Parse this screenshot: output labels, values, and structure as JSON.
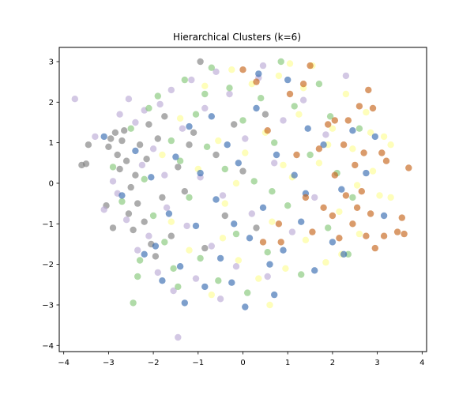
{
  "chart_data": {
    "type": "scatter",
    "title": "Hierarchical Clusters (k=6)",
    "xlabel": "",
    "ylabel": "",
    "xlim": [
      -4.1,
      4.1
    ],
    "ylim": [
      -4.15,
      3.35
    ],
    "xticks": [
      -4,
      -3,
      -2,
      -1,
      0,
      1,
      2,
      3,
      4
    ],
    "yticks": [
      -4,
      -3,
      -2,
      -1,
      0,
      1,
      2,
      3
    ],
    "grid": false,
    "legend": "none",
    "marker_alpha": 0.65,
    "series": [
      {
        "color": "#7f7f7f",
        "points": [
          [
            -3.6,
            0.45
          ],
          [
            -3.5,
            0.48
          ],
          [
            -3.45,
            0.95
          ],
          [
            -3.0,
            0.9
          ],
          [
            -2.95,
            1.1
          ],
          [
            -2.85,
            1.25
          ],
          [
            -2.8,
            0.7
          ],
          [
            -2.75,
            0.35
          ],
          [
            -2.7,
            1.05
          ],
          [
            -2.65,
            1.3
          ],
          [
            -2.6,
            0.55
          ],
          [
            -2.5,
            -0.1
          ],
          [
            -2.55,
            -0.75
          ],
          [
            -2.4,
            0.2
          ],
          [
            -2.35,
            -0.5
          ],
          [
            -2.3,
            0.95
          ],
          [
            -2.2,
            -0.95
          ],
          [
            -2.15,
            0.6
          ],
          [
            -2.1,
            1.45
          ],
          [
            -2.05,
            -1.5
          ],
          [
            -1.95,
            -1.8
          ],
          [
            -1.9,
            1.1
          ],
          [
            -1.75,
            1.65
          ],
          [
            -1.6,
            -1.3
          ],
          [
            -1.45,
            0.4
          ],
          [
            -1.3,
            -0.2
          ],
          [
            -1.1,
            1.25
          ],
          [
            -0.95,
            3.0
          ],
          [
            -0.85,
            -1.6
          ],
          [
            -0.6,
            0.7
          ],
          [
            -0.4,
            -0.8
          ],
          [
            -0.2,
            1.45
          ],
          [
            0.0,
            0.3
          ],
          [
            0.3,
            -1.1
          ],
          [
            0.5,
            1.7
          ],
          [
            -3.05,
            -0.55
          ],
          [
            -2.9,
            -1.1
          ],
          [
            -2.45,
            -1.15
          ],
          [
            -1.8,
            -0.35
          ],
          [
            -1.2,
            0.95
          ]
        ]
      },
      {
        "color": "#bcaad6",
        "points": [
          [
            -3.75,
            2.08
          ],
          [
            -3.3,
            1.15
          ],
          [
            -3.1,
            -0.65
          ],
          [
            -2.9,
            0.05
          ],
          [
            -2.8,
            -0.25
          ],
          [
            -2.75,
            1.7
          ],
          [
            -2.6,
            -0.9
          ],
          [
            -2.55,
            2.08
          ],
          [
            -2.4,
            1.5
          ],
          [
            -2.35,
            -1.65
          ],
          [
            -2.25,
            0.45
          ],
          [
            -2.1,
            -1.3
          ],
          [
            -2.0,
            0.85
          ],
          [
            -1.9,
            -2.2
          ],
          [
            -1.85,
            1.95
          ],
          [
            -1.7,
            -0.6
          ],
          [
            -1.6,
            2.3
          ],
          [
            -1.55,
            -2.65
          ],
          [
            -1.45,
            -3.8
          ],
          [
            -1.35,
            1.35
          ],
          [
            -1.25,
            -1.05
          ],
          [
            -1.15,
            2.55
          ],
          [
            -1.05,
            -2.35
          ],
          [
            -0.95,
            0.15
          ],
          [
            -0.85,
            1.85
          ],
          [
            -0.7,
            -1.55
          ],
          [
            -0.6,
            2.75
          ],
          [
            -0.45,
            -0.3
          ],
          [
            -0.3,
            2.2
          ],
          [
            -0.15,
            -2.05
          ],
          [
            0.05,
            1.1
          ],
          [
            0.2,
            -0.75
          ],
          [
            0.35,
            2.6
          ],
          [
            0.55,
            -2.3
          ],
          [
            0.7,
            0.5
          ],
          [
            0.9,
            1.55
          ],
          [
            1.1,
            -1.2
          ],
          [
            1.35,
            2.05
          ],
          [
            1.6,
            -0.35
          ],
          [
            1.85,
            1.2
          ],
          [
            -2.2,
            1.8
          ],
          [
            -1.75,
            0.2
          ],
          [
            -0.5,
            -2.85
          ],
          [
            0.45,
            2.9
          ],
          [
            2.3,
            2.65
          ]
        ]
      },
      {
        "color": "#86c77a",
        "points": [
          [
            -2.9,
            0.4
          ],
          [
            -2.7,
            -0.45
          ],
          [
            -2.5,
            1.35
          ],
          [
            -2.45,
            -2.95
          ],
          [
            -2.35,
            -2.3
          ],
          [
            -2.3,
            -1.9
          ],
          [
            -2.2,
            0.1
          ],
          [
            -2.1,
            1.85
          ],
          [
            -2.0,
            -0.8
          ],
          [
            -1.9,
            2.15
          ],
          [
            -1.75,
            -1.45
          ],
          [
            -1.6,
            1.05
          ],
          [
            -1.55,
            -2.1
          ],
          [
            -1.4,
            0.55
          ],
          [
            -1.3,
            2.55
          ],
          [
            -1.2,
            -0.35
          ],
          [
            -1.05,
            1.7
          ],
          [
            -0.95,
            -1.85
          ],
          [
            -0.8,
            0.9
          ],
          [
            -0.7,
            2.85
          ],
          [
            -0.55,
            -2.4
          ],
          [
            -0.4,
            0.35
          ],
          [
            -0.3,
            2.35
          ],
          [
            -0.15,
            -1.25
          ],
          [
            0.0,
            1.55
          ],
          [
            0.1,
            -2.7
          ],
          [
            0.25,
            0.05
          ],
          [
            0.4,
            2.1
          ],
          [
            0.55,
            -1.7
          ],
          [
            0.7,
            1.0
          ],
          [
            0.85,
            3.0
          ],
          [
            1.0,
            -0.55
          ],
          [
            1.15,
            1.9
          ],
          [
            1.3,
            -2.25
          ],
          [
            1.5,
            0.7
          ],
          [
            1.7,
            2.45
          ],
          [
            1.9,
            -1.1
          ],
          [
            2.1,
            0.25
          ],
          [
            2.35,
            -1.75
          ],
          [
            2.6,
            1.35
          ],
          [
            -1.45,
            -2.55
          ],
          [
            -0.85,
            2.2
          ],
          [
            0.65,
            -0.2
          ],
          [
            1.95,
            1.65
          ],
          [
            2.45,
            -0.35
          ]
        ]
      },
      {
        "color": "#fdfd95",
        "points": [
          [
            -1.8,
            0.7
          ],
          [
            -1.6,
            -0.95
          ],
          [
            -1.4,
            1.6
          ],
          [
            -1.2,
            -1.65
          ],
          [
            -1.0,
            0.35
          ],
          [
            -0.85,
            2.4
          ],
          [
            -0.7,
            -2.75
          ],
          [
            -0.55,
            1.05
          ],
          [
            -0.4,
            -0.5
          ],
          [
            -0.25,
            2.8
          ],
          [
            -0.1,
            -1.9
          ],
          [
            0.05,
            0.75
          ],
          [
            0.2,
            2.45
          ],
          [
            0.35,
            -2.35
          ],
          [
            0.5,
            1.25
          ],
          [
            0.65,
            -0.95
          ],
          [
            0.8,
            2.65
          ],
          [
            0.95,
            -2.1
          ],
          [
            1.1,
            0.15
          ],
          [
            1.25,
            1.7
          ],
          [
            1.4,
            -1.4
          ],
          [
            1.55,
            2.9
          ],
          [
            1.7,
            0.5
          ],
          [
            1.85,
            -1.95
          ],
          [
            2.0,
            1.35
          ],
          [
            2.15,
            -0.7
          ],
          [
            2.3,
            2.2
          ],
          [
            2.45,
            0.85
          ],
          [
            2.6,
            -1.25
          ],
          [
            2.75,
            1.75
          ],
          [
            2.9,
            0.3
          ],
          [
            3.05,
            -0.3
          ],
          [
            3.15,
            1.15
          ],
          [
            3.3,
            -0.35
          ],
          [
            2.2,
            -1.75
          ],
          [
            1.35,
            2.35
          ],
          [
            0.6,
            -3.0
          ],
          [
            -0.15,
            0.0
          ],
          [
            1.9,
            0.95
          ],
          [
            2.55,
            -0.05
          ],
          [
            1.05,
            2.95
          ],
          [
            2.85,
            1.25
          ],
          [
            3.3,
            0.95
          ],
          [
            -0.45,
            -1.35
          ],
          [
            0.9,
            0.45
          ]
        ]
      },
      {
        "color": "#386cb0",
        "points": [
          [
            -3.1,
            1.15
          ],
          [
            -2.7,
            -0.3
          ],
          [
            -2.4,
            0.8
          ],
          [
            -2.2,
            -1.75
          ],
          [
            -2.05,
            0.15
          ],
          [
            -1.95,
            -1.55
          ],
          [
            -1.8,
            -2.4
          ],
          [
            -1.65,
            -0.75
          ],
          [
            -1.5,
            0.65
          ],
          [
            -1.4,
            -2.05
          ],
          [
            -1.3,
            -2.95
          ],
          [
            -1.2,
            1.4
          ],
          [
            -1.05,
            -1.05
          ],
          [
            -0.95,
            0.25
          ],
          [
            -0.85,
            -2.55
          ],
          [
            -0.7,
            1.65
          ],
          [
            -0.6,
            -0.4
          ],
          [
            -0.5,
            -1.85
          ],
          [
            -0.35,
            0.95
          ],
          [
            -0.25,
            -2.45
          ],
          [
            -0.1,
            0.5
          ],
          [
            0.05,
            -3.05
          ],
          [
            0.15,
            -1.35
          ],
          [
            0.3,
            1.85
          ],
          [
            0.45,
            -0.6
          ],
          [
            0.6,
            -2.0
          ],
          [
            0.75,
            0.7
          ],
          [
            0.9,
            -1.65
          ],
          [
            1.0,
            2.55
          ],
          [
            1.15,
            0.2
          ],
          [
            1.3,
            -0.95
          ],
          [
            1.45,
            1.35
          ],
          [
            1.6,
            -2.15
          ],
          [
            1.8,
            0.95
          ],
          [
            2.0,
            -1.45
          ],
          [
            2.2,
            -0.15
          ],
          [
            2.45,
            1.3
          ],
          [
            2.75,
            0.25
          ],
          [
            2.95,
            1.15
          ],
          [
            3.15,
            -0.8
          ],
          [
            0.35,
            2.7
          ],
          [
            -0.2,
            -1.0
          ],
          [
            1.4,
            -0.25
          ],
          [
            2.25,
            -1.75
          ],
          [
            0.7,
            -2.75
          ]
        ]
      },
      {
        "color": "#c6651c",
        "points": [
          [
            0.0,
            2.8
          ],
          [
            0.3,
            2.5
          ],
          [
            0.45,
            -1.45
          ],
          [
            0.55,
            1.3
          ],
          [
            0.8,
            -1.0
          ],
          [
            1.05,
            2.2
          ],
          [
            1.2,
            0.7
          ],
          [
            1.35,
            2.45
          ],
          [
            1.5,
            2.9
          ],
          [
            1.55,
            -1.2
          ],
          [
            1.7,
            0.85
          ],
          [
            1.8,
            -0.6
          ],
          [
            1.9,
            1.45
          ],
          [
            2.0,
            -0.8
          ],
          [
            2.05,
            0.2
          ],
          [
            2.15,
            -1.35
          ],
          [
            2.25,
            0.95
          ],
          [
            2.3,
            -0.3
          ],
          [
            2.35,
            1.55
          ],
          [
            2.45,
            -1.0
          ],
          [
            2.5,
            0.45
          ],
          [
            2.55,
            -0.6
          ],
          [
            2.6,
            1.9
          ],
          [
            2.65,
            -0.2
          ],
          [
            2.7,
            0.75
          ],
          [
            2.75,
            -1.3
          ],
          [
            2.8,
            2.3
          ],
          [
            2.85,
            -0.75
          ],
          [
            2.9,
            1.85
          ],
          [
            2.95,
            -1.6
          ],
          [
            3.1,
            0.75
          ],
          [
            3.15,
            -1.3
          ],
          [
            3.2,
            0.55
          ],
          [
            3.45,
            -1.2
          ],
          [
            3.55,
            -0.85
          ],
          [
            3.6,
            -1.25
          ],
          [
            3.7,
            0.38
          ],
          [
            2.05,
            1.55
          ],
          [
            1.4,
            -0.35
          ],
          [
            0.85,
            -1.45
          ]
        ]
      }
    ]
  }
}
